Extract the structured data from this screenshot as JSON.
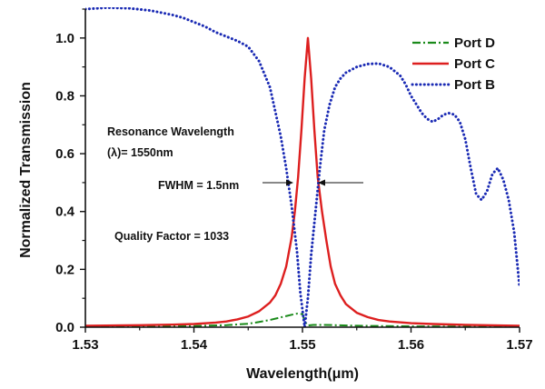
{
  "chart_data": {
    "type": "line",
    "title": "",
    "xlabel": "Wavelength(μm)",
    "ylabel": "Normalized Transmission",
    "xlim": [
      1.53,
      1.57
    ],
    "ylim": [
      0,
      1.1
    ],
    "xticks": [
      "1.53",
      "1.54",
      "1.55",
      "1.56",
      "1.57"
    ],
    "xtick_values": [
      1.53,
      1.54,
      1.55,
      1.56,
      1.57
    ],
    "yticks": [
      "0.0",
      "0.2",
      "0.4",
      "0.6",
      "0.8",
      "1.0"
    ],
    "ytick_values": [
      0.0,
      0.2,
      0.4,
      0.6,
      0.8,
      1.0
    ],
    "grid": false,
    "legend_position": "top-right",
    "series": [
      {
        "name": "Port D",
        "color": "#1a8a1a",
        "dash": "dash-dot",
        "x": [
          1.53,
          1.535,
          1.54,
          1.543,
          1.545,
          1.546,
          1.547,
          1.548,
          1.549,
          1.5495,
          1.55,
          1.5502,
          1.5505,
          1.551,
          1.552,
          1.553,
          1.555,
          1.56,
          1.565,
          1.57
        ],
        "y": [
          0.001,
          0.002,
          0.004,
          0.007,
          0.012,
          0.018,
          0.025,
          0.034,
          0.043,
          0.047,
          0.045,
          0.02,
          0.006,
          0.008,
          0.008,
          0.007,
          0.005,
          0.003,
          0.002,
          0.001
        ]
      },
      {
        "name": "Port C",
        "color": "#dd1f1f",
        "dash": "solid",
        "x": [
          1.53,
          1.535,
          1.538,
          1.54,
          1.542,
          1.543,
          1.544,
          1.545,
          1.546,
          1.547,
          1.5475,
          1.548,
          1.5485,
          1.549,
          1.5493,
          1.5496,
          1.5499,
          1.5502,
          1.5505,
          1.5508,
          1.5511,
          1.5514,
          1.5518,
          1.5522,
          1.5526,
          1.553,
          1.5535,
          1.554,
          1.555,
          1.556,
          1.557,
          1.558,
          1.56,
          1.562,
          1.565,
          1.57
        ],
        "y": [
          0.005,
          0.007,
          0.009,
          0.011,
          0.016,
          0.02,
          0.027,
          0.037,
          0.055,
          0.085,
          0.11,
          0.15,
          0.21,
          0.31,
          0.4,
          0.52,
          0.68,
          0.86,
          1.0,
          0.86,
          0.68,
          0.52,
          0.4,
          0.3,
          0.21,
          0.15,
          0.11,
          0.08,
          0.05,
          0.035,
          0.025,
          0.02,
          0.014,
          0.011,
          0.008,
          0.005
        ]
      },
      {
        "name": "Port B",
        "color": "#1a2ab4",
        "dash": "dotted",
        "x": [
          1.53,
          1.532,
          1.534,
          1.536,
          1.538,
          1.539,
          1.54,
          1.541,
          1.542,
          1.543,
          1.544,
          1.545,
          1.546,
          1.547,
          1.548,
          1.5485,
          1.549,
          1.5495,
          1.5498,
          1.5502,
          1.5505,
          1.5508,
          1.5512,
          1.5516,
          1.552,
          1.5525,
          1.553,
          1.5535,
          1.554,
          1.555,
          1.556,
          1.557,
          1.558,
          1.559,
          1.5595,
          1.56,
          1.5605,
          1.561,
          1.5615,
          1.562,
          1.5625,
          1.563,
          1.5635,
          1.564,
          1.5645,
          1.565,
          1.5655,
          1.566,
          1.5665,
          1.567,
          1.5675,
          1.568,
          1.5685,
          1.569,
          1.5695,
          1.57
        ],
        "y": [
          1.1,
          1.105,
          1.103,
          1.095,
          1.08,
          1.07,
          1.055,
          1.04,
          1.02,
          1.005,
          0.99,
          0.97,
          0.92,
          0.83,
          0.66,
          0.55,
          0.42,
          0.26,
          0.12,
          0.0,
          0.1,
          0.25,
          0.4,
          0.55,
          0.68,
          0.77,
          0.83,
          0.86,
          0.88,
          0.9,
          0.91,
          0.912,
          0.9,
          0.87,
          0.84,
          0.8,
          0.77,
          0.74,
          0.72,
          0.71,
          0.72,
          0.735,
          0.74,
          0.735,
          0.71,
          0.65,
          0.55,
          0.46,
          0.44,
          0.47,
          0.53,
          0.55,
          0.51,
          0.44,
          0.33,
          0.14
        ]
      }
    ],
    "annotations": {
      "resonance_line1": "Resonance Wavelength",
      "resonance_line2": "(λ)= 1550nm",
      "fwhm": "FWHM = 1.5nm",
      "quality": "Quality Factor = 1033"
    }
  }
}
